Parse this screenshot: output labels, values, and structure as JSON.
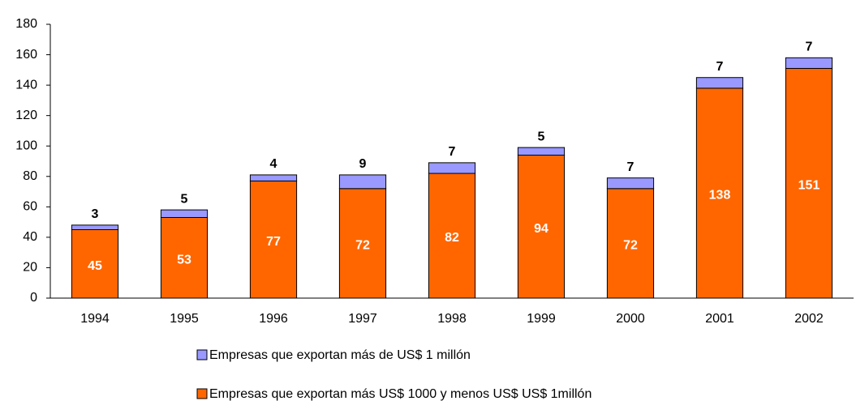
{
  "chart_data": {
    "type": "stacked_bar",
    "categories": [
      "1994",
      "1995",
      "1996",
      "1997",
      "1998",
      "1999",
      "2000",
      "2001",
      "2002"
    ],
    "series": [
      {
        "name": "Empresas que exportan más US$ 1000 y menos US$ US$ 1millón",
        "color": "#ff6600",
        "values": [
          45,
          53,
          77,
          72,
          82,
          94,
          72,
          138,
          151
        ]
      },
      {
        "name": "Empresas que exportan más de US$ 1 millón",
        "color": "#9999ff",
        "values": [
          3,
          5,
          4,
          9,
          7,
          5,
          7,
          7,
          7
        ]
      }
    ],
    "ylim": [
      0,
      180
    ],
    "yticks": [
      0,
      20,
      40,
      60,
      80,
      100,
      120,
      140,
      160,
      180
    ],
    "grid": false
  }
}
